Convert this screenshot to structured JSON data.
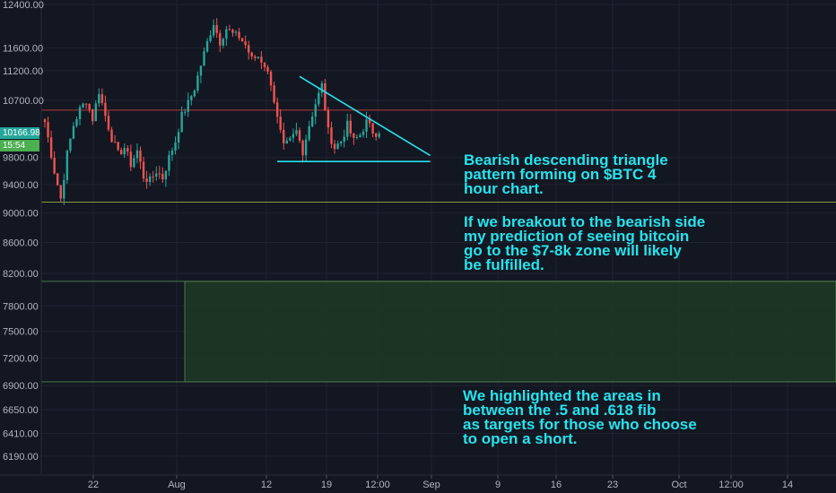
{
  "chart_data": {
    "type": "candlestick",
    "instrument": "$BTC",
    "y_axis": {
      "scale": "log",
      "position": "left",
      "tick_labels": [
        "12400.00",
        "11600.00",
        "11200.00",
        "10700.00",
        "9800.00",
        "9400.00",
        "9000.00",
        "8600.00",
        "8200.00",
        "7800.00",
        "7500.00",
        "7200.00",
        "6900.00",
        "6650.00",
        "6410.00",
        "6190.00"
      ],
      "ylim": [
        6050,
        12500
      ]
    },
    "x_axis": {
      "tick_labels": [
        "22",
        "Aug",
        "12",
        "19",
        "12:00",
        "Sep",
        "9",
        "16",
        "23",
        "Oct",
        "12:00",
        "14"
      ]
    },
    "last_price": "10166.98",
    "countdown": "15:54",
    "price_path": [
      [
        0,
        10350
      ],
      [
        3,
        9600
      ],
      [
        5,
        9200
      ],
      [
        7,
        9850
      ],
      [
        9,
        10300
      ],
      [
        11,
        10550
      ],
      [
        13,
        10700
      ],
      [
        15,
        10400
      ],
      [
        17,
        10850
      ],
      [
        19,
        10450
      ],
      [
        21,
        10100
      ],
      [
        23,
        9850
      ],
      [
        25,
        9950
      ],
      [
        27,
        9700
      ],
      [
        29,
        9900
      ],
      [
        31,
        9520
      ],
      [
        33,
        9450
      ],
      [
        35,
        9600
      ],
      [
        37,
        9500
      ],
      [
        39,
        9800
      ],
      [
        41,
        10050
      ],
      [
        43,
        10450
      ],
      [
        45,
        10650
      ],
      [
        47,
        10900
      ],
      [
        49,
        11300
      ],
      [
        51,
        11700
      ],
      [
        53,
        12050
      ],
      [
        55,
        11700
      ],
      [
        57,
        11950
      ],
      [
        59,
        11850
      ],
      [
        61,
        11800
      ],
      [
        63,
        11650
      ],
      [
        65,
        11400
      ],
      [
        67,
        11450
      ],
      [
        69,
        11300
      ],
      [
        71,
        11000
      ],
      [
        73,
        10400
      ],
      [
        75,
        9950
      ],
      [
        77,
        10050
      ],
      [
        79,
        10200
      ],
      [
        81,
        9900
      ],
      [
        83,
        10300
      ],
      [
        85,
        10650
      ],
      [
        87,
        10950
      ],
      [
        89,
        10200
      ],
      [
        91,
        9950
      ],
      [
        93,
        10050
      ],
      [
        95,
        10300
      ],
      [
        97,
        10050
      ],
      [
        99,
        10150
      ],
      [
        101,
        10350
      ],
      [
        103,
        10200
      ],
      [
        105,
        10166.98
      ]
    ],
    "annotations": {
      "descending_triangle": {
        "resistance": {
          "from": [
            80,
            11100
          ],
          "to": [
            121,
            9830
          ]
        },
        "support": {
          "from": [
            73,
            9740
          ],
          "to": [
            121,
            9740
          ]
        }
      },
      "lines": [
        {
          "price": 10540,
          "color": "#b23a3a"
        },
        {
          "price": 9150,
          "color": "#8a9a3a"
        }
      ],
      "target_zone": {
        "from_price": 8100,
        "to_price": 6940,
        "color": "#1e3a24"
      }
    },
    "text_notes": [
      "Bearish descending triangle\npattern forming on $BTC 4\nhour chart.",
      "If we breakout to the bearish side\nmy prediction of seeing bitcoin\ngo to the $7-8k zone will likely\nbe fulfilled.",
      "We highlighted the areas in\nbetween the .5 and .618 fib\nas targets for those who choose\nto open a short."
    ],
    "colors": {
      "up": "#26a69a",
      "down": "#ef5350",
      "annotation": "#26e3ec",
      "last_price": "#26a69a",
      "countdown": "#4caf50"
    }
  }
}
